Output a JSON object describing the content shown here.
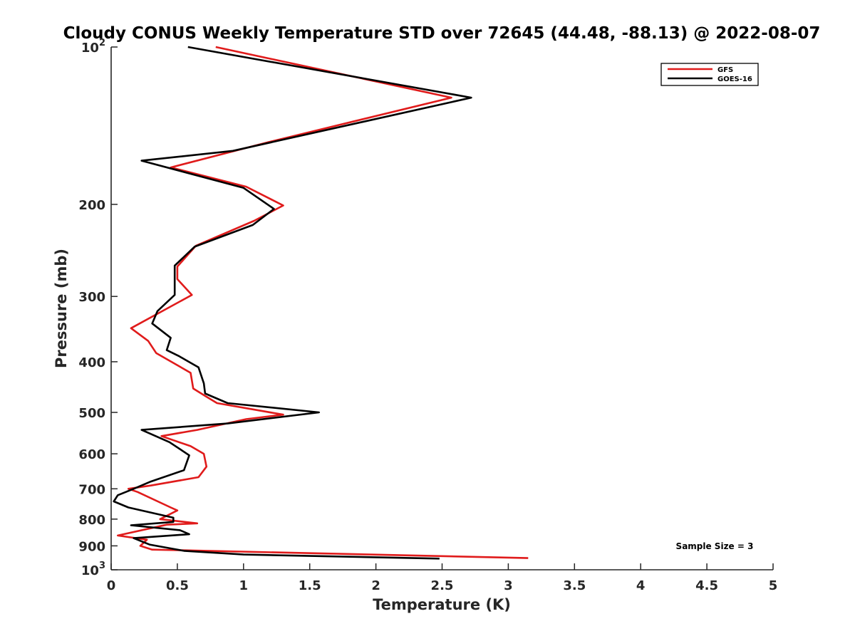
{
  "chart_data": {
    "type": "line",
    "title": "Cloudy CONUS Weekly Temperature STD over 72645 (44.48, -88.13) @ 2022-08-07",
    "xlabel": "Temperature (K)",
    "ylabel": "Pressure (mb)",
    "xlim": [
      0,
      5
    ],
    "ylim": [
      100,
      1000
    ],
    "y_scale": "log",
    "y_reversed": true,
    "x_ticks": [
      0,
      0.5,
      1,
      1.5,
      2,
      2.5,
      3,
      3.5,
      4,
      4.5,
      5
    ],
    "x_tick_labels": [
      "0",
      "0.5",
      "1",
      "1.5",
      "2",
      "2.5",
      "3",
      "3.5",
      "4",
      "4.5",
      "5"
    ],
    "y_ticks": [
      100,
      200,
      300,
      400,
      500,
      600,
      700,
      800,
      900,
      1000
    ],
    "y_tick_labels": [
      {
        "base": "10",
        "exp": "2"
      },
      {
        "base": "200",
        "exp": ""
      },
      {
        "base": "300",
        "exp": ""
      },
      {
        "base": "400",
        "exp": ""
      },
      {
        "base": "500",
        "exp": ""
      },
      {
        "base": "600",
        "exp": ""
      },
      {
        "base": "700",
        "exp": ""
      },
      {
        "base": "800",
        "exp": ""
      },
      {
        "base": "900",
        "exp": ""
      },
      {
        "base": "10",
        "exp": "3"
      }
    ],
    "grid": false,
    "legend_position": "top-right",
    "series": [
      {
        "name": "GFS",
        "color": "#e01b1b",
        "x": [
          0.79,
          2.57,
          1.19,
          0.45,
          1.02,
          1.3,
          1.08,
          0.64,
          0.5,
          0.5,
          0.61,
          0.15,
          0.28,
          0.34,
          0.6,
          0.62,
          0.71,
          0.8,
          1.3,
          1.02,
          0.65,
          0.38,
          0.6,
          0.7,
          0.72,
          0.66,
          0.3,
          0.13,
          0.2,
          0.45,
          0.5,
          0.37,
          0.65,
          0.42,
          0.05,
          0.27,
          0.22,
          0.31,
          3.15
        ],
        "y": [
          100,
          125,
          152,
          170,
          185,
          201,
          215,
          240,
          263,
          278,
          298,
          345,
          365,
          385,
          420,
          450,
          465,
          480,
          505,
          515,
          540,
          555,
          580,
          600,
          635,
          665,
          690,
          700,
          710,
          760,
          770,
          800,
          815,
          820,
          860,
          876,
          900,
          915,
          950
        ]
      },
      {
        "name": "GOES-16",
        "color": "#000000",
        "x": [
          0.58,
          2.72,
          0.92,
          0.23,
          1.0,
          1.23,
          1.07,
          0.63,
          0.48,
          0.48,
          0.48,
          0.35,
          0.31,
          0.45,
          0.42,
          0.51,
          0.66,
          0.7,
          0.71,
          0.88,
          1.57,
          0.88,
          0.23,
          0.44,
          0.59,
          0.55,
          0.3,
          0.17,
          0.05,
          0.02,
          0.13,
          0.47,
          0.47,
          0.15,
          0.52,
          0.59,
          0.17,
          0.29,
          0.55,
          1.0,
          2.48
        ],
        "y": [
          100,
          125,
          158,
          165,
          186,
          204,
          219,
          241,
          262,
          276,
          298,
          320,
          338,
          360,
          380,
          390,
          410,
          440,
          460,
          480,
          500,
          525,
          540,
          570,
          604,
          645,
          678,
          700,
          720,
          740,
          760,
          795,
          810,
          822,
          840,
          855,
          870,
          895,
          920,
          935,
          952
        ]
      }
    ],
    "annotations": [
      "Sample Size = 3"
    ]
  }
}
